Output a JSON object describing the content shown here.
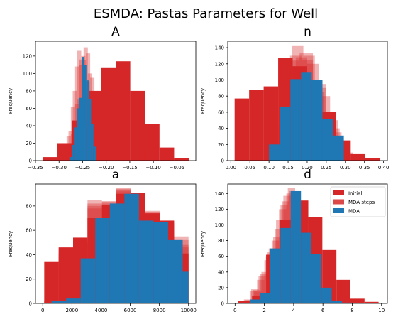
{
  "figure": {
    "title": "ESMDA: Pastas Parameters for Well",
    "colors": {
      "initial": "#d62728",
      "mda_steps": "#d62728",
      "mda": "#1f77b4"
    }
  },
  "legend": {
    "position": "top-right of panel d",
    "entries": [
      {
        "label": "Initial",
        "color": "#d62728"
      },
      {
        "label": "MDA steps",
        "color": "#d62728"
      },
      {
        "label": "MDA",
        "color": "#1f77b4"
      }
    ]
  },
  "chart_data": [
    {
      "type": "histogram",
      "title": "A",
      "ylabel": "Frequency",
      "xlim": [
        -0.35,
        -0.01
      ],
      "ylim": [
        0,
        137
      ],
      "xticks": [
        -0.35,
        -0.3,
        -0.25,
        -0.2,
        -0.15,
        -0.1,
        -0.05
      ],
      "xtick_labels": [
        "−0.35",
        "−0.30",
        "−0.25",
        "−0.20",
        "−0.15",
        "−0.10",
        "−0.05"
      ],
      "yticks": [
        0,
        20,
        40,
        60,
        80,
        100,
        120
      ],
      "ytick_labels": [
        "0",
        "20",
        "40",
        "60",
        "80",
        "100",
        "120"
      ],
      "initial": {
        "edges": [
          -0.335,
          -0.304,
          -0.273,
          -0.242,
          -0.211,
          -0.18,
          -0.149,
          -0.118,
          -0.087,
          -0.056,
          -0.025
        ],
        "counts": [
          4,
          20,
          46,
          80,
          107,
          114,
          80,
          42,
          15,
          3
        ]
      },
      "mda_steps": [
        {
          "edges": [
            -0.275,
            -0.266,
            -0.257,
            -0.248,
            -0.239,
            -0.23,
            -0.221
          ],
          "counts": [
            30,
            65,
            110,
            130,
            100,
            50
          ]
        },
        {
          "edges": [
            -0.28,
            -0.271,
            -0.262,
            -0.253,
            -0.244,
            -0.235,
            -0.226
          ],
          "counts": [
            34,
            80,
            126,
            120,
            90,
            30
          ]
        },
        {
          "edges": [
            -0.284,
            -0.275,
            -0.266,
            -0.257,
            -0.248,
            -0.239,
            -0.23
          ],
          "counts": [
            28,
            62,
            108,
            116,
            80,
            40
          ]
        },
        {
          "edges": [
            -0.27,
            -0.261,
            -0.252,
            -0.243,
            -0.234,
            -0.225,
            -0.216
          ],
          "counts": [
            30,
            70,
            115,
            123,
            95,
            45
          ]
        }
      ],
      "mda": {
        "edges": [
          -0.278,
          -0.272,
          -0.267,
          -0.262,
          -0.257,
          -0.252,
          -0.247,
          -0.242,
          -0.237,
          -0.232,
          -0.227,
          -0.222
        ],
        "counts": [
          4,
          18,
          38,
          60,
          72,
          119,
          110,
          92,
          71,
          42,
          16
        ]
      }
    },
    {
      "type": "histogram",
      "title": "n",
      "ylabel": "Frequency",
      "xlim": [
        -0.008,
        0.41
      ],
      "ylim": [
        0,
        148
      ],
      "xticks": [
        0.0,
        0.05,
        0.1,
        0.15,
        0.2,
        0.25,
        0.3,
        0.35,
        0.4
      ],
      "xtick_labels": [
        "0.00",
        "0.05",
        "0.10",
        "0.15",
        "0.20",
        "0.25",
        "0.30",
        "0.35",
        "0.40"
      ],
      "yticks": [
        0,
        20,
        40,
        60,
        80,
        100,
        120,
        140
      ],
      "ytick_labels": [
        "0",
        "20",
        "40",
        "60",
        "80",
        "100",
        "120",
        "140"
      ],
      "initial": {
        "edges": [
          0.01,
          0.048,
          0.086,
          0.124,
          0.162,
          0.2,
          0.238,
          0.276,
          0.314,
          0.352,
          0.39
        ],
        "counts": [
          77,
          88,
          92,
          127,
          117,
          95,
          60,
          25,
          8,
          3
        ]
      },
      "mda_steps": [
        {
          "edges": [
            0.13,
            0.16,
            0.19,
            0.22,
            0.25,
            0.28,
            0.31
          ],
          "counts": [
            70,
            142,
            130,
            95,
            50,
            18
          ]
        },
        {
          "edges": [
            0.11,
            0.145,
            0.18,
            0.215,
            0.25,
            0.285,
            0.32
          ],
          "counts": [
            42,
            124,
            133,
            90,
            40,
            10
          ]
        },
        {
          "edges": [
            0.14,
            0.17,
            0.2,
            0.23,
            0.26,
            0.29,
            0.32
          ],
          "counts": [
            55,
            128,
            120,
            80,
            35,
            8
          ]
        },
        {
          "edges": [
            0.125,
            0.155,
            0.185,
            0.215,
            0.245,
            0.275,
            0.305
          ],
          "counts": [
            60,
            130,
            125,
            85,
            45,
            12
          ]
        }
      ],
      "mda": {
        "edges": [
          0.1,
          0.128,
          0.156,
          0.184,
          0.212,
          0.24,
          0.268,
          0.296
        ],
        "counts": [
          20,
          67,
          101,
          109,
          100,
          52,
          31,
          20
        ]
      }
    },
    {
      "type": "histogram",
      "title": "a",
      "ylabel": "Frequency",
      "xlim": [
        -500,
        10500
      ],
      "ylim": [
        0,
        98
      ],
      "xticks": [
        0,
        2000,
        4000,
        6000,
        8000,
        10000
      ],
      "xtick_labels": [
        "0",
        "2000",
        "4000",
        "6000",
        "8000",
        "10000"
      ],
      "yticks": [
        0,
        20,
        40,
        60,
        80
      ],
      "ytick_labels": [
        "0",
        "20",
        "40",
        "60",
        "80"
      ],
      "initial": {
        "edges": [
          100,
          1090,
          2080,
          3070,
          4060,
          5050,
          6040,
          7030,
          8020,
          9010,
          10000
        ],
        "counts": [
          34,
          46,
          54,
          70,
          81,
          90,
          91,
          74,
          68,
          41
        ]
      },
      "mda_steps": [
        {
          "edges": [
            100,
            1090,
            2080,
            3070,
            4060,
            5050,
            6040,
            7030,
            8020,
            9010,
            10000
          ],
          "counts": [
            2,
            40,
            50,
            85,
            84,
            95,
            88,
            76,
            66,
            55
          ]
        },
        {
          "edges": [
            100,
            1090,
            2080,
            3070,
            4060,
            5050,
            6040,
            7030,
            8020,
            9010,
            10000
          ],
          "counts": [
            3,
            42,
            52,
            78,
            82,
            92,
            89,
            75,
            67,
            48
          ]
        },
        {
          "edges": [
            100,
            1090,
            2080,
            3070,
            4060,
            5050,
            6040,
            7030,
            8020,
            9010,
            10000
          ],
          "counts": [
            2,
            38,
            48,
            80,
            83,
            94,
            87,
            73,
            65,
            52
          ]
        },
        {
          "edges": [
            100,
            1090,
            2080,
            3070,
            4060,
            5050,
            6040,
            7030,
            8020,
            9010,
            10000
          ],
          "counts": [
            2,
            44,
            51,
            82,
            80,
            93,
            90,
            74,
            66,
            46
          ]
        }
      ],
      "mda": {
        "edges": [
          600,
          1600,
          2600,
          3600,
          4600,
          5600,
          6600,
          7600,
          8600,
          9600,
          10000
        ],
        "counts": [
          2,
          4,
          37,
          70,
          82,
          90,
          68,
          67,
          52,
          26
        ]
      }
    },
    {
      "type": "histogram",
      "title": "d",
      "ylabel": "Frequency",
      "xlim": [
        -0.5,
        10.4
      ],
      "ylim": [
        0,
        152
      ],
      "xticks": [
        0,
        2,
        4,
        6,
        8,
        10
      ],
      "xtick_labels": [
        "0",
        "2",
        "4",
        "6",
        "8",
        "10"
      ],
      "yticks": [
        0,
        20,
        40,
        60,
        80,
        100,
        120,
        140
      ],
      "ytick_labels": [
        "0",
        "20",
        "40",
        "60",
        "80",
        "100",
        "120",
        "140"
      ],
      "initial": {
        "edges": [
          0.2,
          1.16,
          2.12,
          3.08,
          4.04,
          5.0,
          5.96,
          6.92,
          7.88,
          8.84,
          9.8
        ],
        "counts": [
          3,
          10,
          62,
          106,
          131,
          110,
          68,
          30,
          6,
          2
        ]
      },
      "mda_steps": [
        {
          "edges": [
            0.6,
            1.1,
            1.6,
            2.1,
            2.6,
            3.1,
            3.6,
            4.1,
            4.6,
            5.1,
            5.6
          ],
          "counts": [
            5,
            18,
            35,
            60,
            85,
            125,
            147,
            115,
            70,
            30
          ]
        },
        {
          "edges": [
            0.8,
            1.3,
            1.8,
            2.3,
            2.8,
            3.3,
            3.8,
            4.3,
            4.8,
            5.3,
            5.8
          ],
          "counts": [
            4,
            15,
            40,
            70,
            106,
            137,
            140,
            100,
            60,
            22
          ]
        },
        {
          "edges": [
            0.5,
            1.0,
            1.5,
            2.0,
            2.5,
            3.0,
            3.5,
            4.0,
            4.5,
            5.0,
            5.5
          ],
          "counts": [
            3,
            16,
            30,
            55,
            80,
            120,
            140,
            110,
            65,
            25
          ]
        },
        {
          "edges": [
            0.7,
            1.2,
            1.7,
            2.2,
            2.7,
            3.2,
            3.7,
            4.2,
            4.7,
            5.2,
            5.7
          ],
          "counts": [
            4,
            17,
            38,
            65,
            95,
            130,
            143,
            105,
            62,
            28
          ]
        }
      ],
      "mda": {
        "edges": [
          1.0,
          1.7,
          2.4,
          3.1,
          3.8,
          4.5,
          5.2,
          5.9,
          6.6,
          7.3,
          8.0
        ],
        "counts": [
          5,
          13,
          70,
          96,
          143,
          90,
          63,
          20,
          3,
          1
        ]
      }
    }
  ]
}
